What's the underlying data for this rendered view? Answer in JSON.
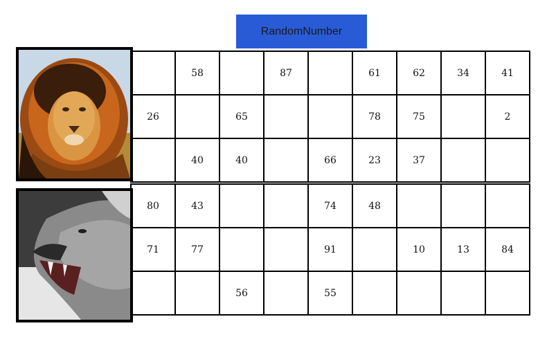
{
  "button": {
    "label": "RandomNumber"
  },
  "colors": {
    "button_bg": "#2a5bd7",
    "border": "#000000",
    "background": "#ffffff"
  },
  "cards": [
    {
      "image": "lion-color-image",
      "rows": [
        [
          "",
          "58",
          "",
          "87",
          "",
          "61",
          "62",
          "34",
          "41"
        ],
        [
          "26",
          "",
          "65",
          "",
          "",
          "78",
          "75",
          "",
          "2"
        ],
        [
          "",
          "40",
          "40",
          "",
          "66",
          "23",
          "37",
          "",
          ""
        ]
      ]
    },
    {
      "image": "lioness-grayscale-image",
      "rows": [
        [
          "80",
          "43",
          "",
          "",
          "74",
          "48",
          "",
          "",
          ""
        ],
        [
          "71",
          "77",
          "",
          "",
          "91",
          "",
          "10",
          "13",
          "84"
        ],
        [
          "",
          "",
          "56",
          "",
          "55",
          "",
          "",
          "",
          ""
        ]
      ]
    }
  ]
}
